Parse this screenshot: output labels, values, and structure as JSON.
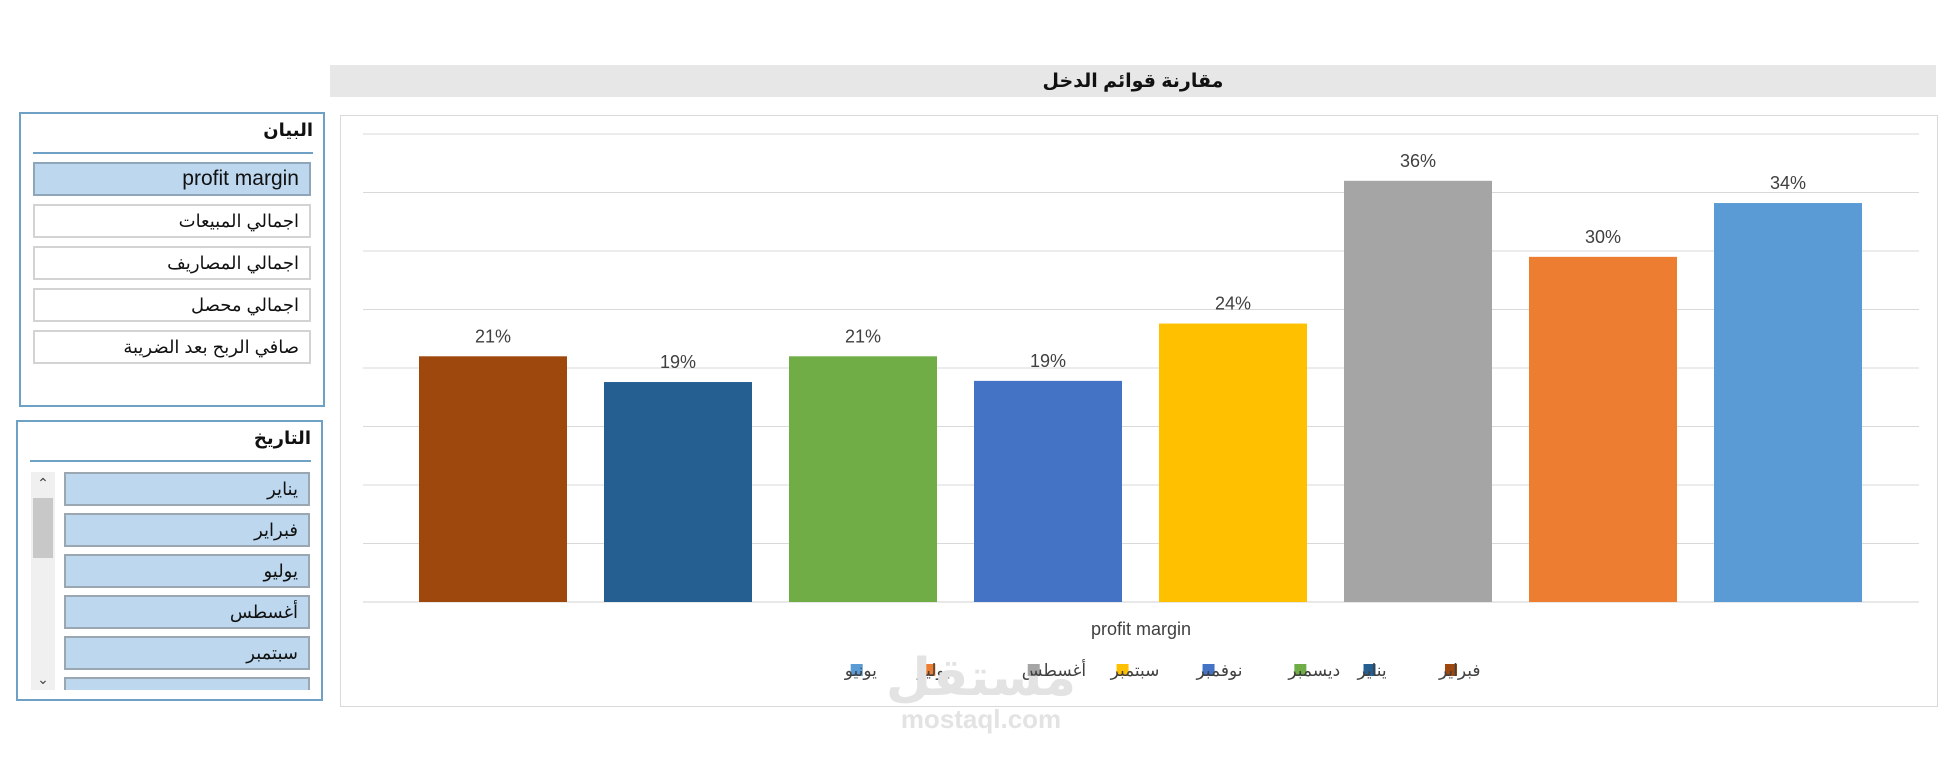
{
  "title": "مقارنة قوائم الدخل",
  "slicer_statement": {
    "header": "البيان",
    "items": [
      "profit margin",
      "اجمالي المبيعات",
      "اجمالي المصاريف",
      "اجمالي محصل",
      "صافي الربح بعد الضريبة"
    ],
    "selected": "profit margin"
  },
  "slicer_date": {
    "header": "التاريخ",
    "items": [
      "يناير",
      "فبراير",
      "يوليو",
      "أغسطس",
      "سبتمبر"
    ]
  },
  "chart_data": {
    "type": "bar",
    "title": "",
    "xlabel": "profit margin",
    "ylabel": "",
    "ylim": [
      0,
      0.4
    ],
    "grid": true,
    "legend_position": "bottom",
    "categories": [
      "profit margin"
    ],
    "series": [
      {
        "name": "فبراير",
        "value": 0.21,
        "label": "21%",
        "color": "#9e480e"
      },
      {
        "name": "يناير",
        "value": 0.188,
        "label": "19%",
        "color": "#255e91"
      },
      {
        "name": "ديسمبر",
        "value": 0.21,
        "label": "21%",
        "color": "#70ad47"
      },
      {
        "name": "نوفمبر",
        "value": 0.189,
        "label": "19%",
        "color": "#4472c4"
      },
      {
        "name": "سبتمبر",
        "value": 0.238,
        "label": "24%",
        "color": "#ffc000"
      },
      {
        "name": "أغسطس",
        "value": 0.36,
        "label": "36%",
        "color": "#a5a5a5"
      },
      {
        "name": "يوليو",
        "value": 0.295,
        "label": "30%",
        "color": "#ed7d31"
      },
      {
        "name": "يونيو",
        "value": 0.341,
        "label": "34%",
        "color": "#5b9bd5"
      }
    ]
  },
  "watermark": {
    "arabic": "مستقل",
    "latin": "mostaql.com"
  }
}
